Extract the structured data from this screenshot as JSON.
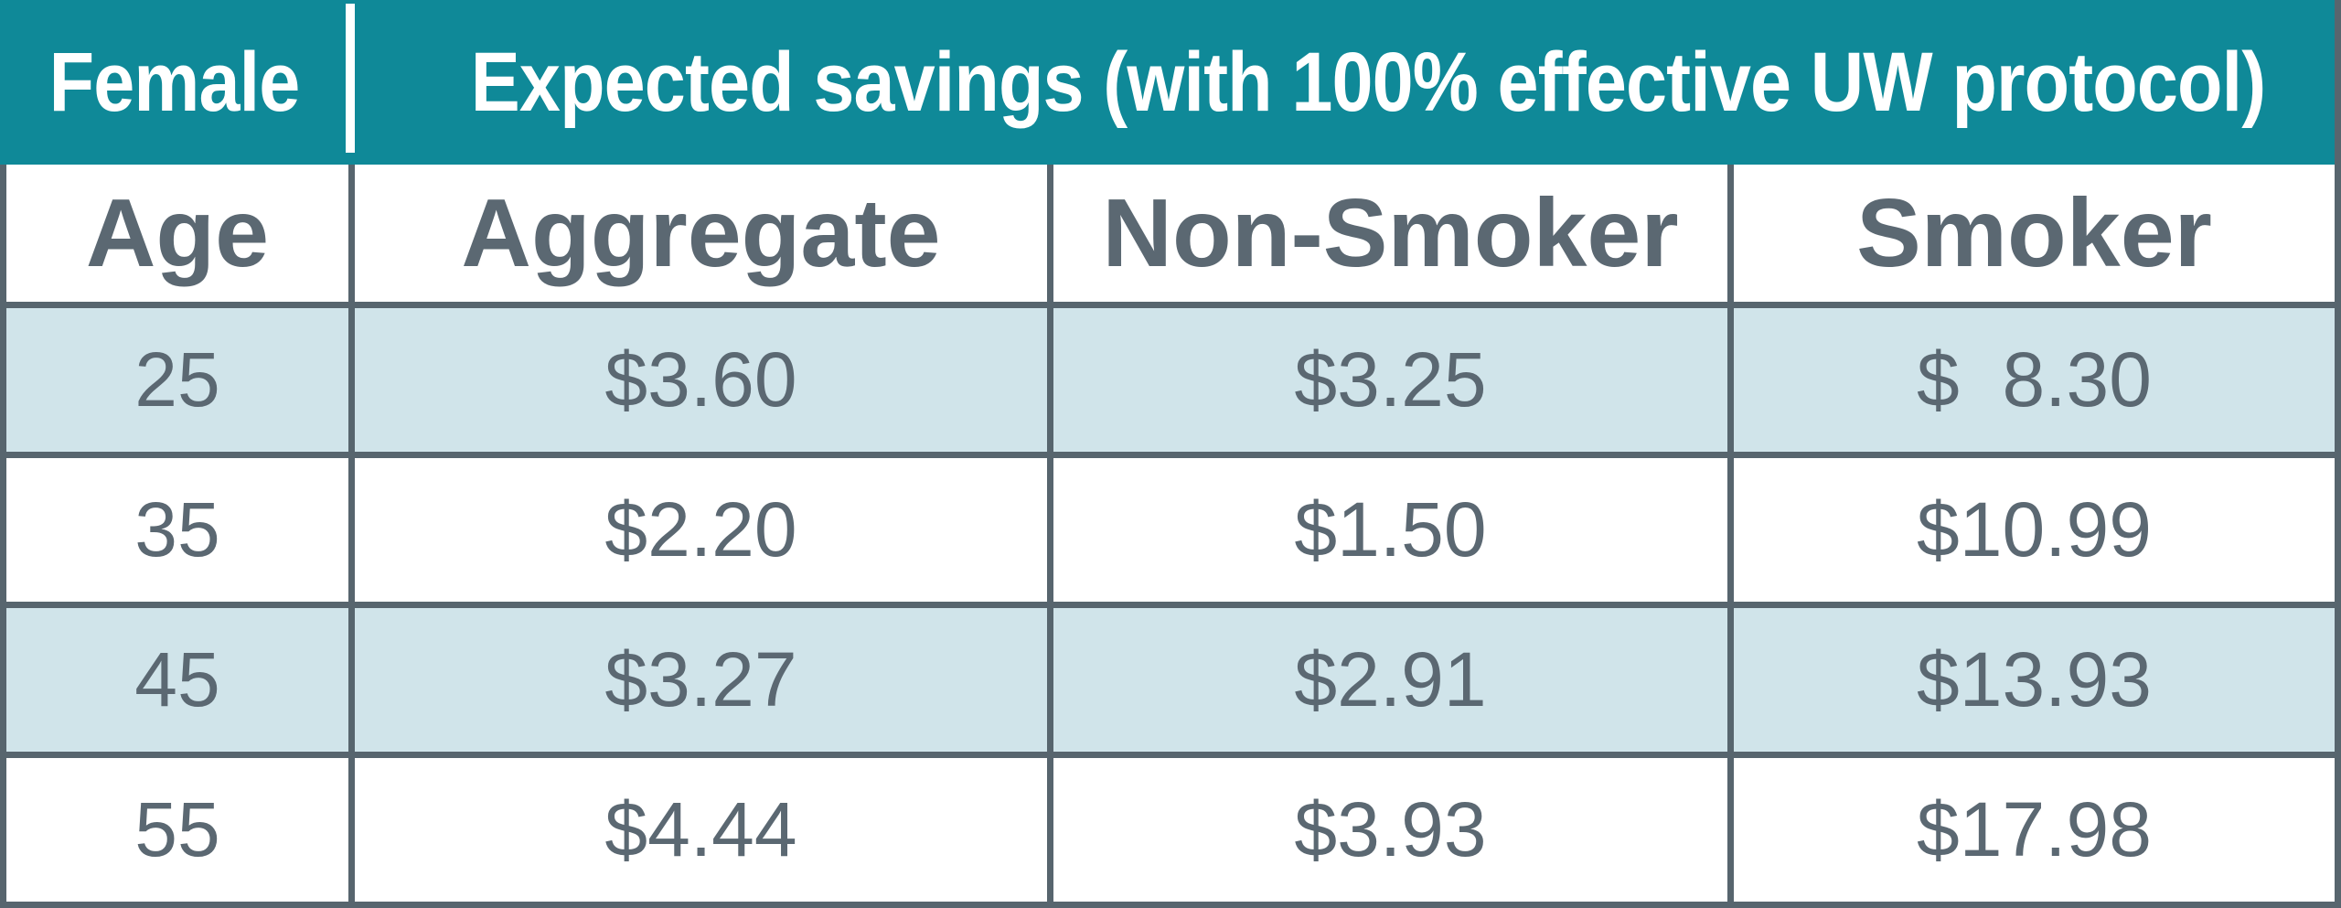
{
  "header": {
    "group_label": "Female",
    "title": "Expected savings (with 100% effective UW protocol)"
  },
  "table": {
    "columns": [
      "Age",
      "Aggregate",
      "Non-Smoker",
      "Smoker"
    ],
    "rows": [
      {
        "age": "25",
        "aggregate": "$3.60",
        "non_smoker": "$3.25",
        "smoker": "$  8.30"
      },
      {
        "age": "35",
        "aggregate": "$2.20",
        "non_smoker": "$1.50",
        "smoker": "$10.99"
      },
      {
        "age": "45",
        "aggregate": "$3.27",
        "non_smoker": "$2.91",
        "smoker": "$13.93"
      },
      {
        "age": "55",
        "aggregate": "$4.44",
        "non_smoker": "$3.93",
        "smoker": "$17.98"
      }
    ]
  },
  "colors": {
    "teal_header": "#0f8998",
    "row_alternate": "#d0e4ea",
    "grid_border": "#57656e",
    "body_text": "#5b6872",
    "header_text": "#ffffff"
  },
  "chart_data": {
    "type": "table",
    "group": "Female",
    "title": "Expected savings (with 100% effective UW protocol)",
    "columns": [
      "Age",
      "Aggregate",
      "Non-Smoker",
      "Smoker"
    ],
    "rows": [
      [
        25,
        3.6,
        3.25,
        8.3
      ],
      [
        35,
        2.2,
        1.5,
        10.99
      ],
      [
        45,
        3.27,
        2.91,
        13.93
      ],
      [
        55,
        4.44,
        3.93,
        17.98
      ]
    ],
    "units": "USD",
    "notes": "Expected savings by age for female lives, aggregate vs non-smoker vs smoker, assuming 100% effective underwriting protocol"
  }
}
